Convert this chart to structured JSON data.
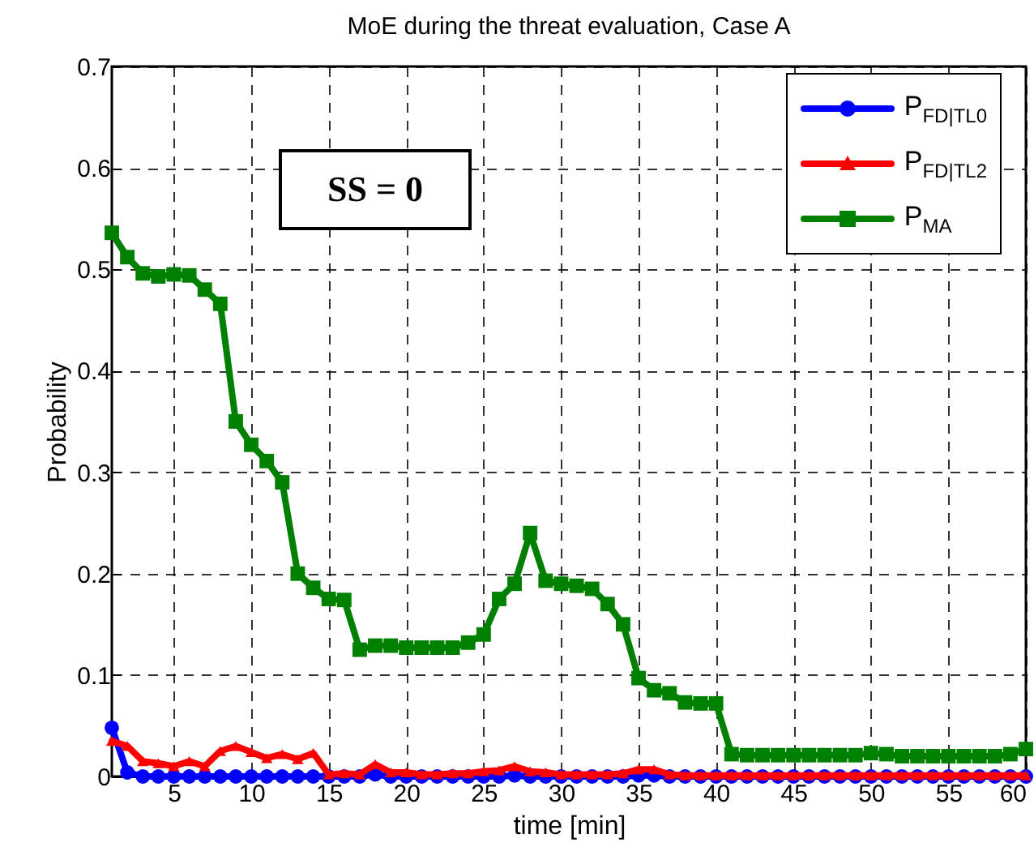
{
  "chart_data": {
    "type": "line",
    "title": "MoE during the threat evaluation, Case A",
    "xlabel": "time [min]",
    "ylabel": "Probability",
    "annotations": [
      "SS = 0"
    ],
    "x": [
      1,
      2,
      3,
      4,
      5,
      6,
      7,
      8,
      9,
      10,
      11,
      12,
      13,
      14,
      15,
      16,
      17,
      18,
      19,
      20,
      21,
      22,
      23,
      24,
      25,
      26,
      27,
      28,
      29,
      30,
      31,
      32,
      33,
      34,
      35,
      36,
      37,
      38,
      39,
      40,
      41,
      42,
      43,
      44,
      45,
      46,
      47,
      48,
      49,
      50,
      51,
      52,
      53,
      54,
      55,
      56,
      57,
      58,
      59,
      60
    ],
    "xlim": [
      1,
      60
    ],
    "xticks": [
      5,
      10,
      15,
      20,
      25,
      30,
      35,
      40,
      45,
      50,
      55,
      60
    ],
    "ylim": [
      0,
      0.7
    ],
    "yticks": [
      0,
      0.1,
      0.2,
      0.3,
      0.4,
      0.5,
      0.6,
      0.7
    ],
    "grid": true,
    "legend": "top right",
    "line_style": "solid",
    "series": [
      {
        "name": "P$_{FD|TL0}$",
        "color": "#0000ff",
        "marker": "circle",
        "values": [
          0.048,
          0.004,
          0,
          0,
          0,
          0,
          0,
          0,
          0,
          0,
          0,
          0,
          0,
          0,
          0,
          0,
          0,
          0.002,
          0,
          0,
          0,
          0,
          0,
          0,
          0,
          0,
          0.001,
          0,
          0,
          0,
          0,
          0,
          0,
          0,
          0.001,
          0.001,
          0,
          0,
          0,
          0,
          0,
          0,
          0,
          0,
          0,
          0,
          0,
          0,
          0,
          0,
          0,
          0,
          0,
          0,
          0,
          0,
          0,
          0,
          0,
          0
        ]
      },
      {
        "name": "P$_{FD|TL2}$",
        "color": "#ff0000",
        "marker": "triangle",
        "values": [
          0.035,
          0.03,
          0.015,
          0.013,
          0.01,
          0.015,
          0.01,
          0.025,
          0.03,
          0.024,
          0.018,
          0.022,
          0.017,
          0.023,
          0.002,
          0.003,
          0.002,
          0.012,
          0.004,
          0.004,
          0.002,
          0.002,
          0.003,
          0.003,
          0.005,
          0.006,
          0.01,
          0.005,
          0.004,
          0.002,
          0.002,
          0.002,
          0.002,
          0.003,
          0.007,
          0.007,
          0.002,
          0.001,
          0.001,
          0.001,
          0.001,
          0.001,
          0.001,
          0.001,
          0.001,
          0.001,
          0.001,
          0.001,
          0.001,
          0.001,
          0.001,
          0.001,
          0.001,
          0.001,
          0.001,
          0.001,
          0.001,
          0.001,
          0.001,
          0.001
        ]
      },
      {
        "name": "P$_{MA}$",
        "color": "#008000",
        "marker": "square",
        "values": [
          0.536,
          0.512,
          0.496,
          0.493,
          0.495,
          0.494,
          0.48,
          0.466,
          0.35,
          0.327,
          0.311,
          0.29,
          0.2,
          0.186,
          0.175,
          0.174,
          0.125,
          0.129,
          0.129,
          0.127,
          0.127,
          0.127,
          0.127,
          0.132,
          0.14,
          0.175,
          0.19,
          0.24,
          0.193,
          0.19,
          0.188,
          0.185,
          0.17,
          0.15,
          0.097,
          0.085,
          0.082,
          0.073,
          0.072,
          0.072,
          0.022,
          0.021,
          0.021,
          0.021,
          0.021,
          0.021,
          0.021,
          0.021,
          0.021,
          0.023,
          0.022,
          0.02,
          0.02,
          0.02,
          0.02,
          0.02,
          0.02,
          0.02,
          0.022,
          0.027
        ]
      }
    ]
  }
}
